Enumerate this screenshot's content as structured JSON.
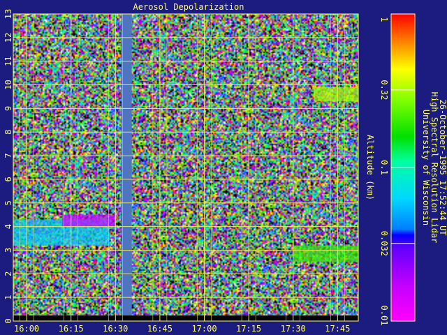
{
  "page": {
    "title": "Aerosol Depolarization",
    "credit_lines": [
      "University of Wisconsin",
      "High Spectral Resolution Lidar",
      "26-October-1995 17:52:44 UT"
    ]
  },
  "chart_data": {
    "type": "heatmap",
    "title": "Aerosol Depolarization",
    "xlabel": "",
    "ylabel": "Altitude (km)",
    "x_ticks": [
      "16:00",
      "16:15",
      "16:30",
      "16:45",
      "17:00",
      "17:15",
      "17:30",
      "17:45"
    ],
    "x_tick_minutes": [
      0,
      15,
      30,
      45,
      60,
      75,
      90,
      105
    ],
    "xlim_minutes": [
      -4.5,
      112
    ],
    "y_ticks": [
      0,
      1,
      2,
      3,
      4,
      5,
      6,
      7,
      8,
      9,
      10,
      11,
      12,
      13
    ],
    "ylim": [
      0,
      13
    ],
    "grid": true,
    "colorbar": {
      "scale": "log",
      "range": [
        0.01,
        1
      ],
      "tick_labels": [
        "1",
        "0.32",
        "0.1",
        "0.032",
        "0.01"
      ],
      "tick_values": [
        1,
        0.32,
        0.1,
        0.032,
        0.01
      ]
    },
    "data_gap_minutes": [
      32,
      35.5
    ],
    "features": [
      {
        "description": "low depolarization aerosol layer",
        "x_minutes": [
          -4.5,
          28
        ],
        "altitude_km": [
          3.2,
          4.3
        ],
        "value": 0.06
      },
      {
        "description": "elevated depolarization layer",
        "x_minutes": [
          12,
          30
        ],
        "altitude_km": [
          4.0,
          4.5
        ],
        "value": 0.015
      },
      {
        "description": "cirrus near 9.5 km",
        "x_minutes": [
          97,
          112
        ],
        "altitude_km": [
          9.3,
          9.9
        ],
        "value": 0.32
      },
      {
        "description": "layer near 2.8 km",
        "x_minutes": [
          90,
          112
        ],
        "altitude_km": [
          2.5,
          3.2
        ],
        "value": 0.2
      }
    ]
  }
}
